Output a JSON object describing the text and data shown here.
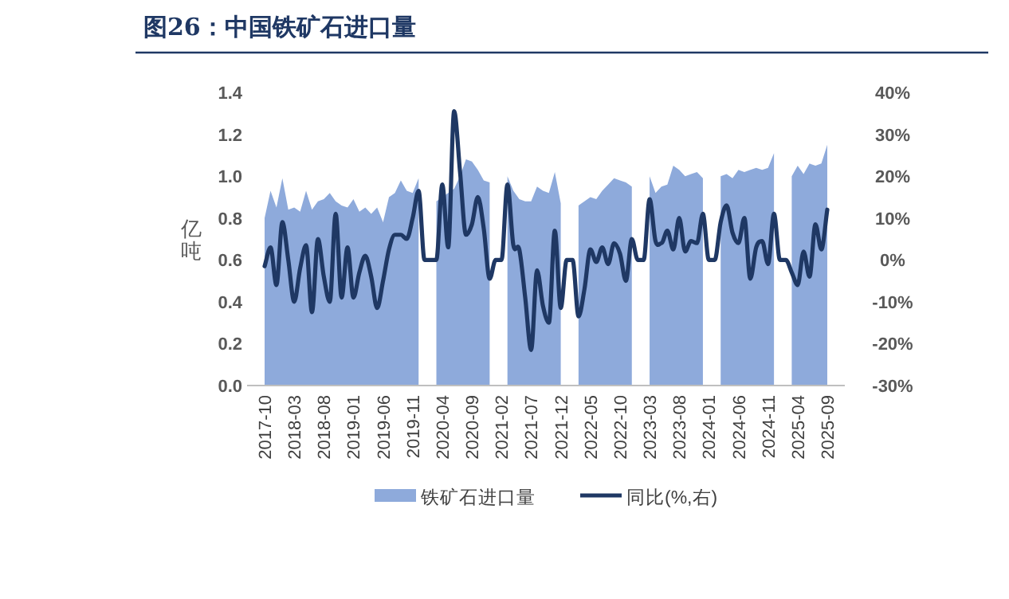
{
  "chart_data": {
    "type": "area",
    "title": "图26：中国铁矿石进口量",
    "ylabel": "亿吨",
    "categories": [
      "2017-10",
      null,
      null,
      null,
      null,
      "2018-03",
      null,
      null,
      null,
      null,
      "2018-08",
      null,
      null,
      null,
      null,
      "2019-01",
      null,
      null,
      null,
      null,
      "2019-06",
      null,
      null,
      null,
      null,
      "2019-11",
      null,
      null,
      null,
      null,
      "2020-04",
      null,
      null,
      null,
      null,
      "2020-09",
      null,
      null,
      null,
      null,
      "2021-02",
      null,
      null,
      null,
      null,
      "2021-07",
      null,
      null,
      null,
      null,
      "2021-12",
      null,
      null,
      null,
      null,
      "2022-05",
      null,
      null,
      null,
      null,
      "2022-10",
      null,
      null,
      null,
      null,
      "2023-03",
      null,
      null,
      null,
      null,
      "2023-08",
      null,
      null,
      null,
      null,
      "2024-01",
      null,
      null,
      null,
      null,
      "2024-06",
      null,
      null,
      null,
      null,
      "2024-11",
      null,
      null,
      null,
      null,
      "2025-04",
      null,
      null,
      null,
      null,
      "2025-09"
    ],
    "series": [
      {
        "name": "铁矿石进口量",
        "color": "#8eaadb",
        "values": [
          0.8,
          0.93,
          0.85,
          0.99,
          0.84,
          0.85,
          0.83,
          0.93,
          0.84,
          0.88,
          0.89,
          0.92,
          0.88,
          0.86,
          0.85,
          0.89,
          0.83,
          0.85,
          0.82,
          0.85,
          0.78,
          0.9,
          0.92,
          0.98,
          0.93,
          0.92,
          0.99,
          null,
          null,
          0.88,
          0.9,
          0.92,
          0.94,
          1.0,
          1.08,
          1.07,
          1.03,
          0.98,
          0.97,
          null,
          null,
          1.0,
          0.93,
          0.89,
          0.88,
          0.88,
          0.95,
          0.93,
          0.92,
          1.02,
          0.87,
          null,
          null,
          0.86,
          0.88,
          0.9,
          0.89,
          0.93,
          0.96,
          0.99,
          0.98,
          0.97,
          0.95,
          null,
          null,
          1.0,
          0.92,
          0.95,
          0.96,
          1.05,
          1.03,
          1.0,
          1.01,
          1.02,
          0.99,
          null,
          null,
          1.0,
          1.01,
          0.99,
          1.03,
          1.02,
          1.03,
          1.04,
          1.03,
          1.04,
          1.11,
          null,
          null,
          1.0,
          1.05,
          1.01,
          1.06,
          1.05,
          1.06,
          1.15
        ]
      },
      {
        "name": "同比(%,右)",
        "type": "line",
        "axis": "y2",
        "color": "#1f3864",
        "values": [
          -1.5,
          3,
          -6,
          9,
          0,
          -10,
          -2,
          3.5,
          -12.5,
          5,
          -4,
          -10,
          11,
          -9,
          3,
          -9,
          -3,
          1,
          -4,
          -11.5,
          -5,
          2.5,
          6,
          6,
          5,
          10,
          16.5,
          0,
          0,
          0,
          18,
          3,
          35.5,
          21,
          6,
          8.5,
          15,
          7.5,
          -4.5,
          0,
          0,
          18,
          3.5,
          2.5,
          -9,
          -21.5,
          -2.5,
          -11,
          -15,
          7,
          -11.5,
          0,
          0,
          -13.5,
          -7,
          2.5,
          -0.5,
          3,
          -1,
          4,
          1.5,
          -5,
          5,
          0,
          0,
          14.5,
          4.5,
          4,
          7,
          2.5,
          10,
          2,
          4.5,
          4,
          11,
          0,
          0,
          9,
          13,
          6.5,
          4,
          10,
          -4.5,
          3,
          4.5,
          -1,
          11,
          0,
          0,
          -3,
          -6,
          2,
          -4,
          8.5,
          2.5,
          12
        ]
      }
    ],
    "ylim": [
      0,
      1.4
    ],
    "yticks": [
      {
        "value": 0,
        "label": "0.0"
      },
      {
        "value": 0.2,
        "label": "0.2"
      },
      {
        "value": 0.4,
        "label": "0.4"
      },
      {
        "value": 0.6,
        "label": "0.6"
      },
      {
        "value": 0.8,
        "label": "0.8"
      },
      {
        "value": 1,
        "label": "1.0"
      },
      {
        "value": 1.2,
        "label": "1.2"
      },
      {
        "value": 1.4,
        "label": "1.4"
      }
    ],
    "y2lim": [
      -30,
      40
    ],
    "y2ticks": [
      {
        "value": -30,
        "label": "-30%"
      },
      {
        "value": -20,
        "label": "-20%"
      },
      {
        "value": -10,
        "label": "-10%"
      },
      {
        "value": 0,
        "label": "0%"
      },
      {
        "value": 10,
        "label": "10%"
      },
      {
        "value": 20,
        "label": "20%"
      },
      {
        "value": 30,
        "label": "30%"
      },
      {
        "value": 40,
        "label": "40%"
      }
    ],
    "legend": "bottom"
  }
}
